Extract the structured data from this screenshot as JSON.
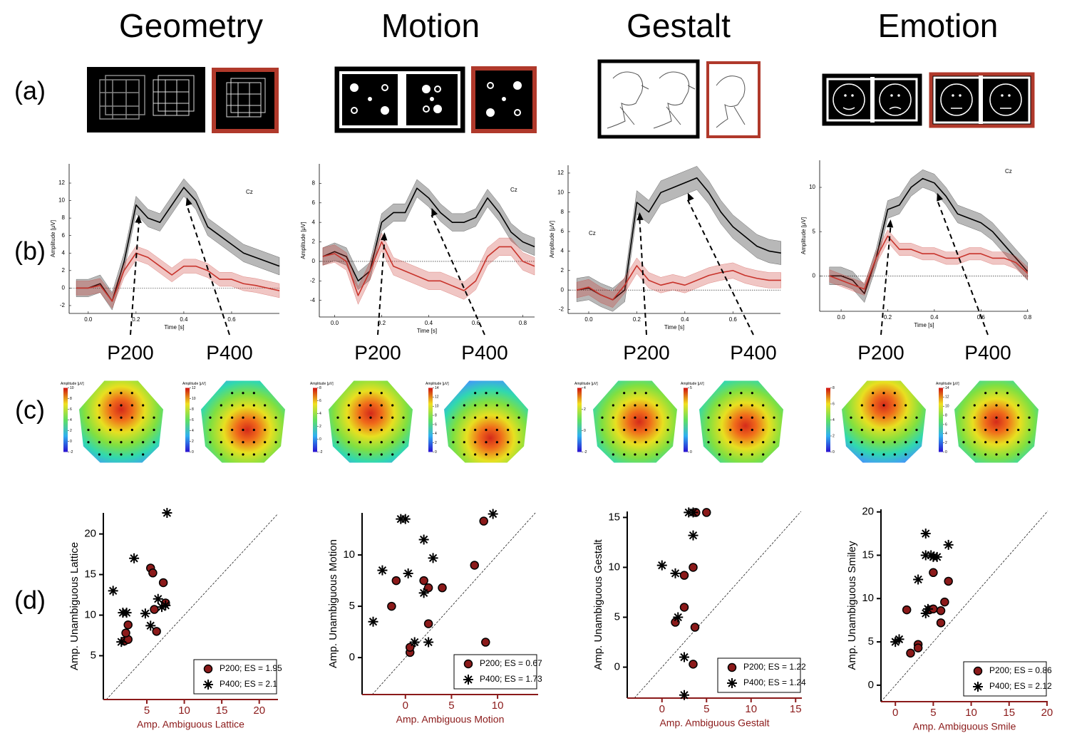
{
  "titles": [
    "Geometry",
    "Motion",
    "Gestalt",
    "Emotion"
  ],
  "row_labels": [
    "(a)",
    "(b)",
    "(c)",
    "(d)"
  ],
  "peak_labels": [
    "P200",
    "P400"
  ],
  "topomaps": [
    {
      "label": "Amplitude [μV]",
      "ticks": [
        -2,
        0,
        2,
        4,
        6,
        8,
        10
      ]
    },
    {
      "label": "Amplitude [μV]",
      "ticks": [
        0,
        2,
        4,
        6,
        8,
        10,
        12
      ]
    },
    {
      "label": "Amplitude [μV]",
      "ticks": [
        -2,
        0,
        2,
        4,
        6,
        8
      ]
    },
    {
      "label": "Amplitude [μV]",
      "ticks": [
        0,
        2,
        4,
        6,
        8,
        10,
        12,
        14
      ]
    },
    {
      "label": "Amplitude [μV]",
      "ticks": [
        -2,
        0,
        2,
        4
      ]
    },
    {
      "label": "Amplitude [μV]",
      "ticks": [
        0,
        5
      ]
    },
    {
      "ticks": [
        0,
        2,
        4,
        6,
        8
      ]
    },
    {
      "label": "Amplitude [μV]",
      "ticks": [
        0,
        2,
        4,
        6,
        8,
        10,
        12,
        14
      ]
    }
  ],
  "chart_data": [
    {
      "type": "line",
      "x_label": "Time [s]",
      "y_label": "Amplitude [μV]",
      "annotation": "Cz",
      "x": [
        -0.05,
        0,
        0.05,
        0.1,
        0.15,
        0.2,
        0.25,
        0.3,
        0.35,
        0.4,
        0.45,
        0.5,
        0.55,
        0.6,
        0.65,
        0.7,
        0.75,
        0.8
      ],
      "series": [
        {
          "color": "#000000",
          "band": 1,
          "values": [
            0,
            0,
            0.5,
            -1.5,
            3,
            9.5,
            8,
            7.5,
            9.5,
            11.5,
            10,
            7,
            6,
            5,
            4,
            3.5,
            3,
            2.5
          ]
        },
        {
          "color": "#c8332b",
          "band": 0.8,
          "values": [
            0,
            0,
            0.3,
            -1.5,
            2,
            4,
            3.5,
            2.5,
            1.5,
            2.5,
            2.5,
            2,
            1,
            1,
            0.5,
            0.3,
            0,
            -0.3
          ]
        }
      ],
      "xlim": [
        -0.08,
        0.8
      ],
      "ylim": [
        -2.9,
        14.2
      ],
      "xticks": [
        {
          "value": 0,
          "label": "0.0"
        },
        0.2,
        0.4,
        0.6
      ],
      "yticks": [
        -2,
        0,
        2,
        4,
        6,
        8,
        10,
        12
      ]
    },
    {
      "type": "line",
      "x_label": "Time [s]",
      "y_label": "Amplitude [μV]",
      "annotation": "Cz",
      "x": [
        -0.05,
        0,
        0.05,
        0.1,
        0.15,
        0.2,
        0.25,
        0.3,
        0.35,
        0.4,
        0.45,
        0.5,
        0.55,
        0.6,
        0.65,
        0.7,
        0.75,
        0.8,
        0.85
      ],
      "series": [
        {
          "color": "#000000",
          "band": 0.9,
          "values": [
            0.5,
            1,
            0.5,
            -2,
            -1,
            4,
            5,
            5,
            7.5,
            6.5,
            5,
            4,
            4,
            4.5,
            6.5,
            5,
            3,
            2,
            1.5
          ]
        },
        {
          "color": "#c8332b",
          "band": 0.9,
          "values": [
            0.5,
            0.8,
            0,
            -3.5,
            -1,
            2,
            -0.5,
            -1,
            -1.5,
            -2,
            -2,
            -2.5,
            -3,
            -2,
            0.5,
            1.5,
            1.5,
            0,
            -0.5
          ]
        }
      ],
      "xlim": [
        -0.065,
        0.85
      ],
      "ylim": [
        -5.7,
        10
      ],
      "xticks": [
        {
          "value": 0,
          "label": "0.0"
        },
        0.2,
        0.4,
        0.6,
        0.8
      ],
      "yticks": [
        -4,
        -2,
        0,
        2,
        4,
        6,
        8
      ]
    },
    {
      "type": "line",
      "x_label": "Time [s]",
      "y_label": "Amplitude [μV]",
      "annotation": "Cz",
      "x": [
        -0.05,
        0,
        0.05,
        0.1,
        0.15,
        0.2,
        0.25,
        0.3,
        0.35,
        0.4,
        0.45,
        0.5,
        0.55,
        0.6,
        0.65,
        0.7,
        0.75,
        0.8
      ],
      "series": [
        {
          "color": "#000000",
          "band": 1.2,
          "values": [
            0,
            0.2,
            -0.5,
            -1,
            0,
            9,
            8,
            10,
            10.5,
            11,
            11.5,
            10,
            8,
            6.5,
            5.5,
            4.5,
            4,
            3.8
          ]
        },
        {
          "color": "#c8332b",
          "band": 0.8,
          "values": [
            0,
            0.3,
            -0.5,
            -1,
            0.5,
            2.5,
            1,
            0.5,
            0.8,
            0.5,
            1,
            1.5,
            1.8,
            2,
            1.5,
            1.2,
            1,
            1
          ]
        }
      ],
      "xlim": [
        -0.086,
        0.798
      ],
      "ylim": [
        -2.4,
        12.8
      ],
      "xticks": [
        {
          "value": 0,
          "label": "0.0"
        },
        0.2,
        0.4,
        0.6
      ],
      "yticks": [
        -2,
        0,
        2,
        4,
        6,
        8,
        10,
        12
      ]
    },
    {
      "type": "line",
      "x_label": "Time [s]",
      "y_label": "Amplitude [μV]",
      "annotation": "Cz",
      "x": [
        -0.05,
        0,
        0.05,
        0.1,
        0.15,
        0.2,
        0.25,
        0.3,
        0.35,
        0.4,
        0.45,
        0.5,
        0.55,
        0.6,
        0.65,
        0.7,
        0.75,
        0.8
      ],
      "series": [
        {
          "color": "#000000",
          "band": 1,
          "values": [
            0,
            0,
            -0.5,
            -2,
            2,
            7.5,
            8,
            10,
            11,
            10.5,
            9,
            7,
            6.5,
            6,
            5,
            3.5,
            2,
            0.5
          ]
        },
        {
          "color": "#c8332b",
          "band": 0.7,
          "values": [
            0,
            -0.5,
            -1,
            -1.5,
            2,
            4.5,
            3,
            3,
            2.5,
            2.5,
            2,
            2,
            2.5,
            2.5,
            2,
            2,
            1.5,
            0.3
          ]
        }
      ],
      "xlim": [
        -0.092,
        0.804
      ],
      "ylim": [
        -4,
        13.06
      ],
      "xticks": [
        {
          "value": 0,
          "label": "0.0"
        },
        0.2,
        0.4,
        0.6,
        0.8
      ],
      "yticks": [
        0,
        5,
        10
      ]
    },
    {
      "type": "scatter",
      "x_label": "Amp. Ambiguous Lattice",
      "y_label": "Amp. Unambiguous Lattice",
      "xlim": [
        -0.8,
        22.5
      ],
      "ylim": [
        -0.4,
        22.6
      ],
      "xticks": [
        5,
        10,
        15,
        20
      ],
      "yticks": [
        5,
        10,
        15,
        20
      ],
      "series": [
        {
          "name": "P200; ES = 1.95",
          "color": "#8b1a1a",
          "marker": "circle",
          "x": [
            2,
            2.5,
            2.2,
            2.5,
            5.5,
            5.8,
            6,
            6.3,
            7.2,
            7.5
          ],
          "values": [
            6.8,
            7,
            7.8,
            8.8,
            15.8,
            15.2,
            10.7,
            8,
            14,
            11.5
          ]
        },
        {
          "name": "P400; ES = 2.1",
          "color": "#000000",
          "marker": "star",
          "x": [
            0.5,
            1.6,
            1.8,
            2.3,
            3.3,
            4.8,
            5.5,
            6.5,
            7,
            7.5,
            7.7
          ],
          "values": [
            13,
            6.7,
            10.3,
            10.3,
            17,
            10.2,
            8.7,
            12,
            11,
            11.2,
            22.6
          ]
        }
      ]
    },
    {
      "type": "scatter",
      "x_label": "Amp. Ambiguous Motion",
      "y_label": "Amp. Unambiguous Motion",
      "xlim": [
        -4.7,
        14.4
      ],
      "ylim": [
        -3.6,
        14.1
      ],
      "xticks": [
        0,
        5,
        10
      ],
      "yticks": [
        0,
        5,
        10
      ],
      "series": [
        {
          "name": "P200; ES = 0.67",
          "color": "#8b1a1a",
          "marker": "circle",
          "x": [
            -1.5,
            -1,
            0.5,
            0.5,
            2,
            2.5,
            2.5,
            4,
            7.5,
            8.5,
            8.7
          ],
          "values": [
            5,
            7.5,
            0.5,
            1,
            7.5,
            6.8,
            3.3,
            6.8,
            9,
            13.3,
            1.5
          ]
        },
        {
          "name": "P400; ES = 1.73",
          "color": "#000000",
          "marker": "star",
          "x": [
            -3.5,
            -2.5,
            -0.5,
            0,
            0.3,
            1,
            2,
            2,
            2.5,
            3,
            9.5
          ],
          "values": [
            3.5,
            8.5,
            13.5,
            13.5,
            8.2,
            1.5,
            11.5,
            6.3,
            1.5,
            9.7,
            14
          ]
        }
      ]
    },
    {
      "type": "scatter",
      "x_label": "Amp. Ambiguous Gestalt",
      "y_label": "Amp. Unambiguous Gestalt",
      "xlim": [
        -3.9,
        15.7
      ],
      "ylim": [
        -3.1,
        15.6
      ],
      "xticks": [
        0,
        5,
        10,
        15
      ],
      "yticks": [
        0,
        5,
        10,
        15
      ],
      "series": [
        {
          "name": "P200; ES = 1.22",
          "color": "#8b1a1a",
          "marker": "circle",
          "x": [
            1.5,
            2.5,
            2.5,
            3.5,
            3.5,
            3.7,
            3.8,
            5
          ],
          "values": [
            4.5,
            9.2,
            6,
            0.3,
            10,
            4,
            15.5,
            15.5
          ]
        },
        {
          "name": "P400; ES = 1.24",
          "color": "#000000",
          "marker": "star",
          "x": [
            0,
            1.5,
            1.8,
            2.5,
            2.5,
            3,
            3.5,
            3.5
          ],
          "values": [
            10.2,
            9.4,
            5,
            1,
            -2.8,
            15.5,
            15.5,
            13.2
          ]
        }
      ]
    },
    {
      "type": "scatter",
      "x_label": "Amp. Ambiguous Smile",
      "y_label": "Amp. Unambiguous Smiley",
      "xlim": [
        -1.9,
        20.1
      ],
      "ylim": [
        -1.9,
        20.3
      ],
      "xticks": [
        0,
        5,
        10,
        15,
        20
      ],
      "yticks": [
        0,
        5,
        10,
        15,
        20
      ],
      "series": [
        {
          "name": "P200; ES = 0.86",
          "color": "#8b1a1a",
          "marker": "circle",
          "x": [
            1.5,
            2,
            3,
            3,
            4.5,
            5,
            5,
            6,
            6,
            6.5,
            7
          ],
          "values": [
            8.7,
            3.7,
            4.7,
            4.3,
            8.7,
            13,
            8.8,
            7.2,
            8.6,
            9.6,
            12
          ]
        },
        {
          "name": "P400; ES = 2.12",
          "color": "#000000",
          "marker": "star",
          "x": [
            0,
            0.5,
            3,
            4,
            4,
            4,
            4.3,
            4.7,
            5,
            5.5,
            7
          ],
          "values": [
            5,
            5.3,
            12.2,
            17.5,
            15,
            8.3,
            8.8,
            15,
            14.8,
            14.8,
            16.2
          ]
        }
      ]
    }
  ]
}
